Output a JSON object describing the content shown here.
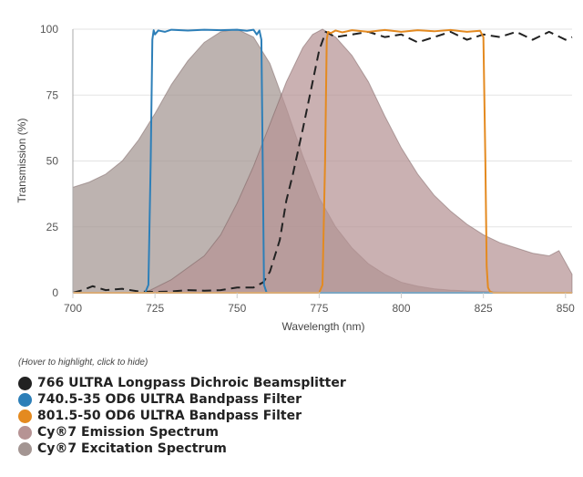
{
  "chart_data": {
    "type": "area",
    "xlabel": "Wavelength (nm)",
    "ylabel": "Transmission (%)",
    "xlim": [
      700,
      852
    ],
    "ylim": [
      0,
      100
    ],
    "x_ticks": [
      700,
      725,
      750,
      775,
      800,
      825,
      850
    ],
    "y_ticks": [
      0,
      25,
      50,
      75,
      100
    ],
    "grid": "horizontal",
    "legend_position": "bottom",
    "legend_hint": "(Hover to highlight, click to hide)",
    "series": [
      {
        "name": "Cy®7 Excitation Spectrum",
        "style": "area",
        "color": "#a39592",
        "x": [
          700,
          705,
          710,
          715,
          720,
          725,
          730,
          735,
          740,
          745,
          750,
          755,
          760,
          765,
          770,
          775,
          780,
          785,
          790,
          795,
          800,
          805,
          810,
          815,
          820,
          825,
          830,
          835,
          840,
          845,
          852
        ],
        "values": [
          40,
          42,
          45,
          50,
          58,
          68,
          79,
          88,
          95,
          99,
          100,
          97,
          87,
          70,
          52,
          36,
          25,
          17,
          11,
          7,
          4,
          2.5,
          1.5,
          1,
          0.7,
          0.5,
          0.3,
          0.2,
          0.1,
          0.1,
          0.1
        ]
      },
      {
        "name": "Cy®7 Emission Spectrum",
        "style": "area",
        "color": "#b69394",
        "x": [
          722,
          730,
          740,
          745,
          750,
          755,
          760,
          765,
          770,
          773,
          776,
          780,
          785,
          790,
          795,
          800,
          805,
          810,
          815,
          820,
          825,
          830,
          835,
          840,
          845,
          848,
          852
        ],
        "values": [
          0,
          5,
          14,
          22,
          34,
          48,
          64,
          80,
          93,
          98,
          100,
          97,
          90,
          80,
          67,
          55,
          45,
          37,
          31,
          26,
          22,
          19,
          17,
          15,
          14,
          16,
          7
        ]
      },
      {
        "name": "766 ULTRA Longpass Dichroic Beamsplitter",
        "style": "dashed",
        "color": "#222222",
        "x": [
          700,
          703,
          706,
          710,
          715,
          720,
          725,
          730,
          735,
          740,
          745,
          750,
          755,
          758,
          760,
          763,
          765,
          767,
          770,
          773,
          775,
          777,
          780,
          785,
          790,
          795,
          800,
          805,
          810,
          815,
          820,
          825,
          830,
          835,
          840,
          845,
          850,
          852
        ],
        "values": [
          0,
          1,
          2.5,
          1,
          1.5,
          0.5,
          0.3,
          0.5,
          1,
          0.8,
          1,
          2,
          2,
          4,
          8,
          20,
          35,
          45,
          62,
          80,
          92,
          99,
          97,
          98,
          99,
          97,
          98,
          95,
          97,
          99,
          96,
          98,
          97,
          99,
          96,
          99,
          96,
          97
        ]
      },
      {
        "name": "740.5-35 OD6 ULTRA Bandpass Filter",
        "style": "line",
        "color": "#2d7fb8",
        "x": [
          700,
          722,
          723,
          723.7,
          724.2,
          724.6,
          725,
          726,
          728,
          730,
          735,
          740,
          745,
          750,
          753,
          755,
          756,
          756.8,
          757.4,
          757.8,
          758.2,
          759,
          760,
          852
        ],
        "values": [
          0,
          0,
          3,
          50,
          96,
          99.6,
          98,
          99.5,
          99,
          99.8,
          99.5,
          99.8,
          99.6,
          99.8,
          99.4,
          99.8,
          98,
          99.5,
          96,
          50,
          3,
          0,
          0,
          0
        ]
      },
      {
        "name": "801.5-50 OD6 ULTRA Bandpass Filter",
        "style": "line",
        "color": "#e48a20",
        "x": [
          700,
          775,
          776,
          776.8,
          777.3,
          777.7,
          778.5,
          780,
          782,
          785,
          790,
          795,
          800,
          805,
          810,
          815,
          820,
          824,
          825,
          825.6,
          826,
          826.4,
          827,
          828,
          852
        ],
        "values": [
          0,
          0,
          3,
          50,
          96,
          99,
          98.5,
          99.5,
          98.8,
          99.6,
          99,
          99.7,
          99,
          99.6,
          99.2,
          99.7,
          99,
          99.4,
          97,
          50,
          10,
          2,
          0.5,
          0,
          0
        ]
      }
    ],
    "legend_order": [
      "766 ULTRA Longpass Dichroic Beamsplitter",
      "740.5-35 OD6 ULTRA Bandpass Filter",
      "801.5-50 OD6 ULTRA Bandpass Filter",
      "Cy®7 Emission Spectrum",
      "Cy®7 Excitation Spectrum"
    ]
  }
}
